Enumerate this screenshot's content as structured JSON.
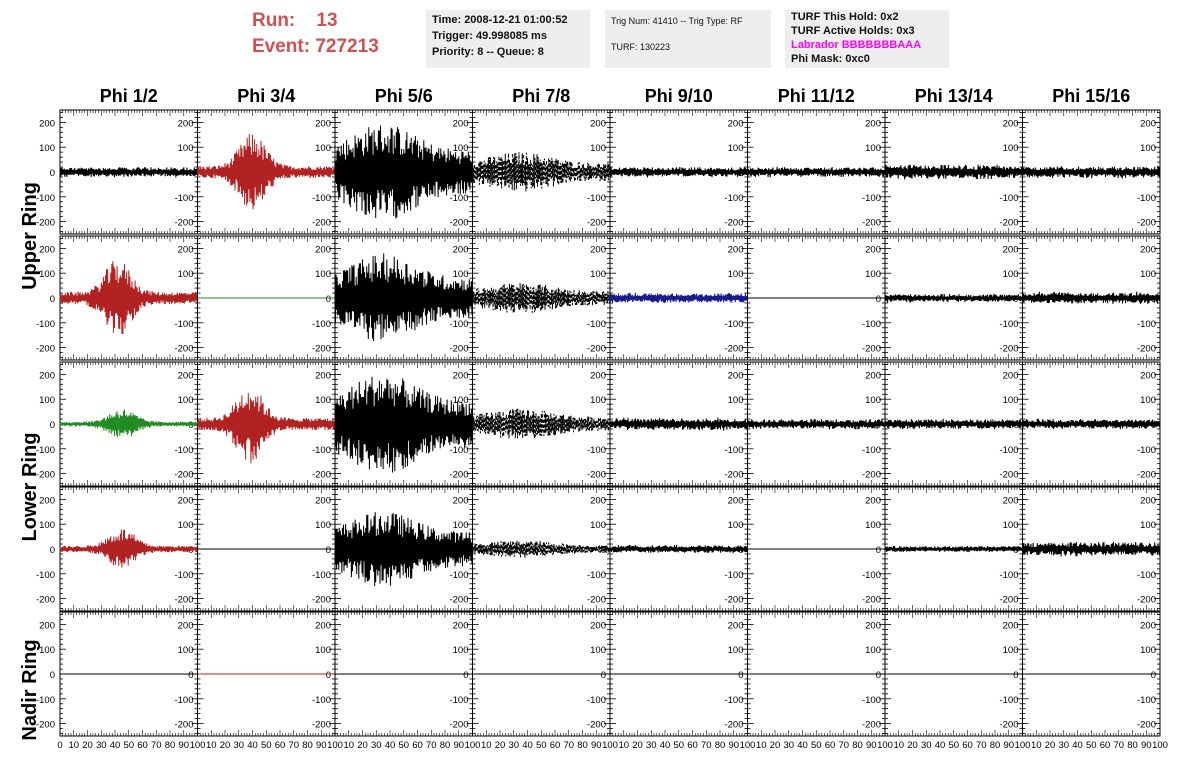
{
  "run": {
    "run_label": "Run:",
    "run_value": "13",
    "event_label": "Event:",
    "event_value": "727213"
  },
  "time_box": {
    "time": "Time: 2008-12-21 01:00:52",
    "trigger": "Trigger: 49.998085 ms",
    "priority": "Priority: 8 -- Queue: 8"
  },
  "trig_box": {
    "trig": "Trig Num: 41410 -- Trig Type: RF",
    "turf": "TURF: 130223"
  },
  "turf_box": {
    "hold": "TURF This Hold: 0x2",
    "active": "TURF Active Holds: 0x3",
    "labrador": "Labrador BBBBBBBAAA",
    "phimask": "Phi Mask: 0xc0",
    "labrador_color": "#ff00ff"
  },
  "phi_headers": [
    "Phi 1/2",
    "Phi 3/4",
    "Phi 5/6",
    "Phi 7/8",
    "Phi 9/10",
    "Phi 11/12",
    "Phi 13/14",
    "Phi 15/16"
  ],
  "ring_labels": [
    "Upper Ring",
    "Lower Ring",
    "Nadir Ring"
  ],
  "y_ticks": [
    "200",
    "100",
    "0",
    "-100",
    "-200"
  ],
  "x_ticks": [
    "0",
    "10",
    "20",
    "30",
    "40",
    "50",
    "60",
    "70",
    "80",
    "90",
    "100"
  ],
  "colors": {
    "red": "#b22222",
    "green": "#228b22",
    "blue": "#1a1a8c",
    "black": "#000000"
  },
  "chart_data": {
    "type": "line",
    "xlim": [
      0,
      100
    ],
    "ylim": [
      -250,
      250
    ],
    "rows": 5,
    "cols": 8,
    "traces": [
      [
        {
          "style": "solid",
          "color": "black",
          "amp": 25,
          "env": "flat"
        },
        {
          "style": "solid",
          "color": "red",
          "amp": 150,
          "env": "burst",
          "center": 40
        },
        {
          "style": "solid",
          "color": "black",
          "amp": 220,
          "env": "wide"
        },
        {
          "style": "dashed",
          "color": "black",
          "amp": 90,
          "env": "wide"
        },
        {
          "style": "solid",
          "color": "black",
          "amp": 25,
          "env": "flat"
        },
        {
          "style": "solid",
          "color": "black",
          "amp": 25,
          "env": "flat"
        },
        {
          "style": "solid",
          "color": "black",
          "amp": 35,
          "env": "flat"
        },
        {
          "style": "solid",
          "color": "black",
          "amp": 30,
          "env": "flat"
        }
      ],
      [
        {
          "style": "solid",
          "color": "red",
          "amp": 150,
          "env": "burst",
          "center": 42
        },
        {
          "style": "solid",
          "color": "green",
          "amp": 0,
          "env": "flat"
        },
        {
          "style": "solid",
          "color": "black",
          "amp": 200,
          "env": "wide"
        },
        {
          "style": "dashed",
          "color": "black",
          "amp": 70,
          "env": "wide"
        },
        {
          "style": "solid",
          "color": "blue",
          "amp": 25,
          "env": "flat"
        },
        {
          "style": "solid",
          "color": "black",
          "amp": 0,
          "env": "flat"
        },
        {
          "style": "solid",
          "color": "black",
          "amp": 20,
          "env": "flat"
        },
        {
          "style": "solid",
          "color": "black",
          "amp": 30,
          "env": "flat"
        }
      ],
      [
        {
          "style": "solid",
          "color": "green",
          "amp": 60,
          "env": "burst",
          "center": 45
        },
        {
          "style": "solid",
          "color": "red",
          "amp": 150,
          "env": "burst",
          "center": 38
        },
        {
          "style": "solid",
          "color": "black",
          "amp": 230,
          "env": "wide"
        },
        {
          "style": "dashed",
          "color": "black",
          "amp": 70,
          "env": "wide"
        },
        {
          "style": "solid",
          "color": "black",
          "amp": 30,
          "env": "flat"
        },
        {
          "style": "solid",
          "color": "black",
          "amp": 25,
          "env": "flat"
        },
        {
          "style": "solid",
          "color": "black",
          "amp": 25,
          "env": "flat"
        },
        {
          "style": "solid",
          "color": "black",
          "amp": 25,
          "env": "flat"
        }
      ],
      [
        {
          "style": "solid",
          "color": "red",
          "amp": 80,
          "env": "burst",
          "center": 45
        },
        {
          "style": "solid",
          "color": "black",
          "amp": 0,
          "env": "flat"
        },
        {
          "style": "solid",
          "color": "black",
          "amp": 170,
          "env": "wide"
        },
        {
          "style": "dashed",
          "color": "black",
          "amp": 40,
          "env": "wide"
        },
        {
          "style": "solid",
          "color": "black",
          "amp": 20,
          "env": "flat"
        },
        {
          "style": "solid",
          "color": "black",
          "amp": 0,
          "env": "flat"
        },
        {
          "style": "solid",
          "color": "black",
          "amp": 15,
          "env": "flat"
        },
        {
          "style": "solid",
          "color": "black",
          "amp": 35,
          "env": "flat"
        }
      ],
      [
        {
          "style": "solid",
          "color": "black",
          "amp": 0,
          "env": "flat"
        },
        {
          "style": "solid",
          "color": "red",
          "amp": 0,
          "env": "flat"
        },
        {
          "style": "solid",
          "color": "black",
          "amp": 0,
          "env": "flat"
        },
        {
          "style": "solid",
          "color": "black",
          "amp": 0,
          "env": "flat"
        },
        {
          "style": "solid",
          "color": "black",
          "amp": 0,
          "env": "flat"
        },
        {
          "style": "solid",
          "color": "black",
          "amp": 0,
          "env": "flat"
        },
        {
          "style": "solid",
          "color": "black",
          "amp": 0,
          "env": "flat"
        },
        {
          "style": "solid",
          "color": "black",
          "amp": 0,
          "env": "flat"
        }
      ]
    ]
  }
}
